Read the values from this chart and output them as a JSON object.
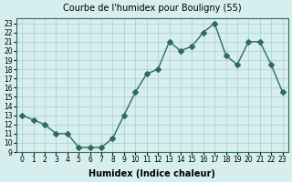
{
  "x": [
    0,
    1,
    2,
    3,
    4,
    5,
    6,
    7,
    8,
    9,
    10,
    11,
    12,
    13,
    14,
    15,
    16,
    17,
    18,
    19,
    20,
    21,
    22,
    23
  ],
  "y": [
    13,
    12.5,
    12,
    11,
    11,
    9.5,
    9.5,
    9.5,
    10.5,
    13,
    15.5,
    17.5,
    18,
    21,
    20,
    20.5,
    22,
    23,
    19.5,
    18.5,
    21,
    21,
    18.5,
    15.5
  ],
  "title": "Courbe de l'humidex pour Bouligny (55)",
  "xlabel": "Humidex (Indice chaleur)",
  "ylabel": "",
  "xlim": [
    -0.5,
    23.5
  ],
  "ylim": [
    9,
    23.5
  ],
  "yticks": [
    9,
    10,
    11,
    12,
    13,
    14,
    15,
    16,
    17,
    18,
    19,
    20,
    21,
    22,
    23
  ],
  "xticks": [
    0,
    1,
    2,
    3,
    4,
    5,
    6,
    7,
    8,
    9,
    10,
    11,
    12,
    13,
    14,
    15,
    16,
    17,
    18,
    19,
    20,
    21,
    22,
    23
  ],
  "line_color": "#2e6b5e",
  "marker": "D",
  "marker_size": 3,
  "bg_color": "#d6eeee",
  "grid_color": "#aacccc",
  "title_fontsize": 7,
  "label_fontsize": 7,
  "tick_fontsize": 5.5
}
